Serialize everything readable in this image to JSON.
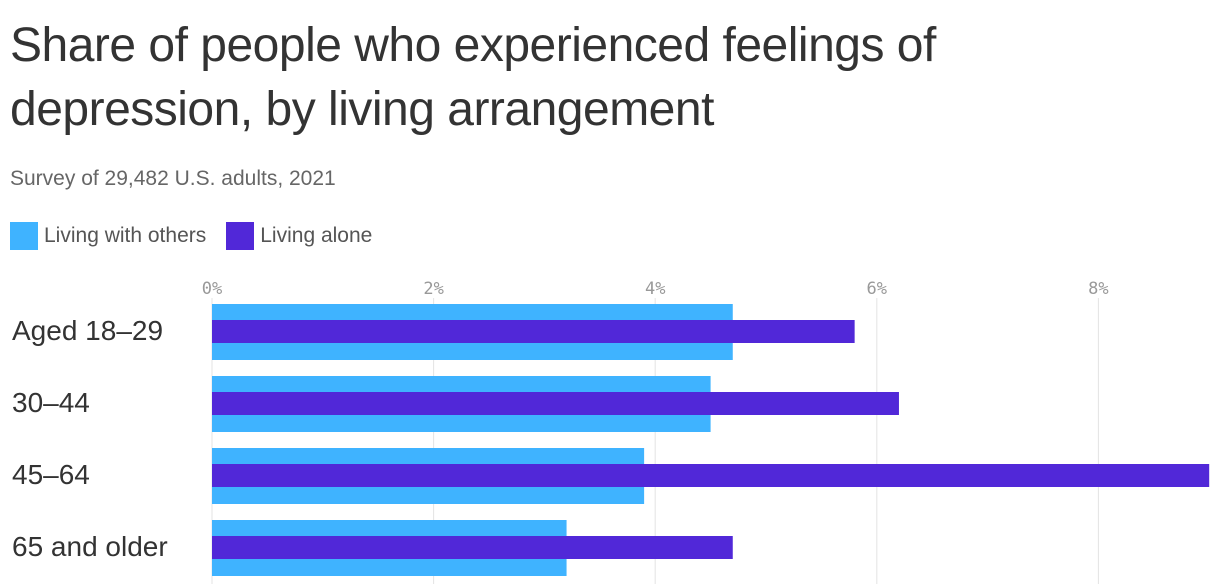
{
  "chart_data": {
    "type": "bar",
    "orientation": "horizontal",
    "title": "Share of people who experienced feelings of depression, by living arrangement",
    "subtitle": "Survey of 29,482 U.S. adults, 2021",
    "categories": [
      "Aged 18–29",
      "30–44",
      "45–64",
      "65 and older"
    ],
    "series": [
      {
        "name": "Living with others",
        "color": "#3fb3ff",
        "values": [
          4.7,
          4.5,
          3.9,
          3.2
        ]
      },
      {
        "name": "Living alone",
        "color": "#5128d8",
        "values": [
          5.8,
          6.2,
          9.0,
          4.7
        ]
      }
    ],
    "ticks": [
      "0%",
      "2%",
      "4%",
      "6%",
      "8%"
    ],
    "tick_values": [
      0,
      2,
      4,
      6,
      8
    ],
    "xlim": [
      0,
      9
    ],
    "grid": true,
    "legend_position": "top-left"
  }
}
